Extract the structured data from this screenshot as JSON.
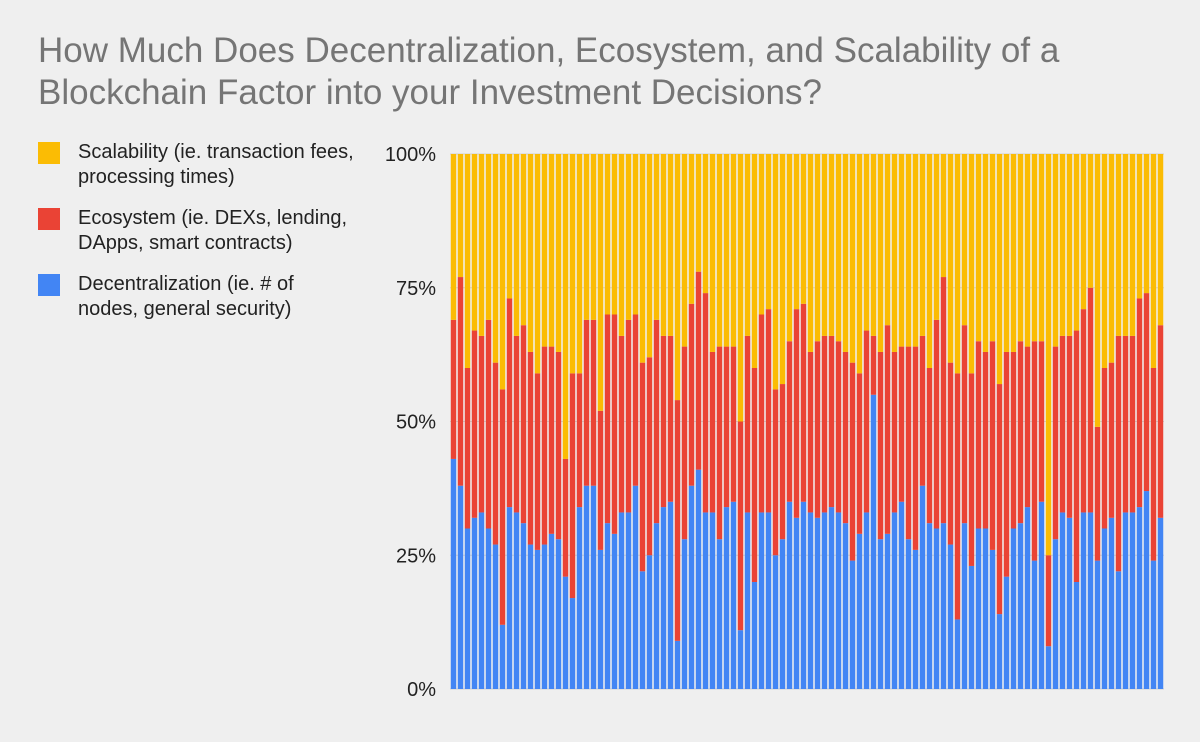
{
  "colors": {
    "scalability": "#fbbc04",
    "ecosystem": "#ea4335",
    "decentralization": "#4285f4",
    "background": "#efefef",
    "gridline": "#d0d0d0"
  },
  "chart_data": {
    "type": "bar",
    "stacked": "percent",
    "title": "How Much Does Decentralization, Ecosystem, and Scalability of a Blockchain Factor into your Investment Decisions?",
    "xlabel": "",
    "ylabel": "",
    "ylim": [
      0,
      100
    ],
    "y_ticks": [
      "0%",
      "25%",
      "50%",
      "75%",
      "100%"
    ],
    "y_tick_values": [
      0,
      25,
      50,
      75,
      100
    ],
    "legend_position": "left",
    "grid": true,
    "series": [
      {
        "name": "Decentralization (ie. # of nodes, general security)",
        "color_key": "decentralization",
        "values": [
          43,
          38,
          30,
          32,
          33,
          30,
          27,
          12,
          34,
          33,
          31,
          27,
          26,
          27,
          29,
          28,
          21,
          17,
          34,
          38,
          38,
          26,
          31,
          29,
          33,
          33,
          38,
          22,
          25,
          31,
          34,
          35,
          9,
          28,
          38,
          41,
          33,
          33,
          28,
          34,
          35,
          11,
          33,
          20,
          33,
          33,
          25,
          28,
          35,
          32,
          35,
          33,
          32,
          33,
          34,
          33,
          31,
          24,
          29,
          33,
          55,
          28,
          29,
          33,
          35,
          28,
          26,
          38,
          31,
          30,
          31,
          27,
          13,
          31,
          23,
          30,
          30,
          26,
          14,
          21,
          30,
          31,
          34,
          24,
          35,
          8,
          28,
          33,
          32,
          20,
          33,
          33,
          24,
          30,
          32,
          22,
          33,
          33,
          34,
          37,
          24,
          32
        ]
      },
      {
        "name": "Ecosystem (ie. DEXs, lending, DApps, smart contracts)",
        "color_key": "ecosystem",
        "values": [
          26,
          39,
          30,
          35,
          33,
          39,
          34,
          44,
          39,
          33,
          37,
          36,
          33,
          37,
          35,
          35,
          22,
          42,
          25,
          31,
          31,
          26,
          39,
          41,
          33,
          36,
          32,
          39,
          37,
          38,
          32,
          31,
          45,
          36,
          34,
          37,
          41,
          30,
          36,
          30,
          29,
          39,
          33,
          40,
          37,
          38,
          31,
          29,
          30,
          39,
          37,
          30,
          33,
          33,
          32,
          32,
          32,
          37,
          30,
          34,
          11,
          35,
          39,
          30,
          29,
          36,
          38,
          28,
          29,
          39,
          46,
          34,
          46,
          37,
          36,
          35,
          33,
          39,
          43,
          42,
          33,
          34,
          30,
          41,
          30,
          17,
          36,
          33,
          34,
          47,
          38,
          42,
          25,
          30,
          29,
          44,
          33,
          33,
          39,
          37,
          36,
          36
        ]
      },
      {
        "name": "Scalability (ie. transaction fees, processing times)",
        "color_key": "scalability",
        "values": [
          31,
          23,
          40,
          33,
          34,
          31,
          39,
          44,
          27,
          34,
          32,
          37,
          41,
          36,
          36,
          37,
          57,
          41,
          41,
          31,
          31,
          48,
          30,
          30,
          34,
          31,
          30,
          39,
          38,
          31,
          34,
          34,
          46,
          36,
          28,
          22,
          26,
          37,
          36,
          36,
          36,
          50,
          34,
          40,
          30,
          29,
          44,
          43,
          35,
          29,
          28,
          37,
          35,
          34,
          34,
          35,
          37,
          39,
          41,
          33,
          34,
          37,
          32,
          37,
          36,
          36,
          36,
          34,
          40,
          31,
          23,
          39,
          41,
          32,
          41,
          35,
          37,
          35,
          43,
          37,
          37,
          35,
          36,
          35,
          35,
          75,
          36,
          34,
          34,
          33,
          29,
          25,
          51,
          40,
          39,
          34,
          34,
          34,
          27,
          26,
          40,
          32
        ]
      }
    ]
  }
}
